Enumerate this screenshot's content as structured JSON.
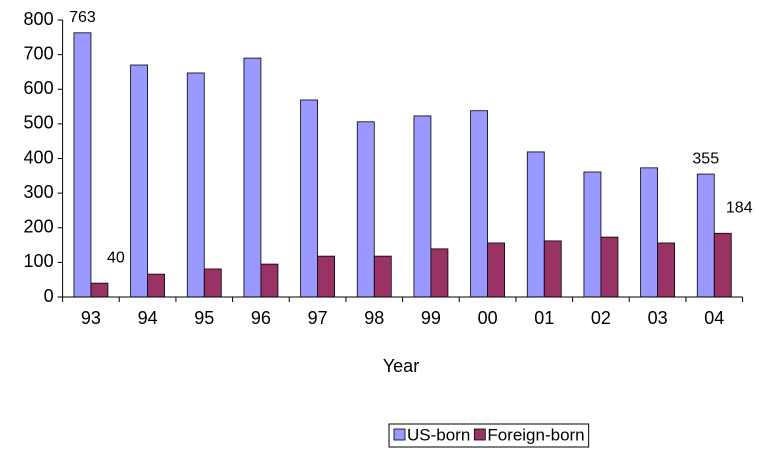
{
  "chart_data": {
    "type": "bar",
    "categories": [
      "93",
      "94",
      "95",
      "96",
      "97",
      "98",
      "99",
      "00",
      "01",
      "02",
      "03",
      "04"
    ],
    "x_label": "Year",
    "series": [
      {
        "name": "US-born",
        "color": "#9999ff",
        "values": [
          763,
          670,
          647,
          690,
          569,
          506,
          523,
          538,
          419,
          361,
          373,
          355
        ],
        "value_labels": [
          "763",
          null,
          null,
          null,
          null,
          null,
          null,
          null,
          null,
          null,
          null,
          "355"
        ]
      },
      {
        "name": "Foreign-born",
        "color": "#993366",
        "values": [
          40,
          66,
          81,
          95,
          118,
          118,
          139,
          156,
          162,
          173,
          156,
          184
        ],
        "value_labels": [
          "40",
          null,
          null,
          null,
          null,
          null,
          null,
          null,
          null,
          null,
          null,
          "184"
        ]
      }
    ],
    "ylim": [
      0,
      800
    ],
    "yticks": [
      0,
      100,
      200,
      300,
      400,
      500,
      600,
      700,
      800
    ],
    "grid": false,
    "legend": "bottom"
  }
}
